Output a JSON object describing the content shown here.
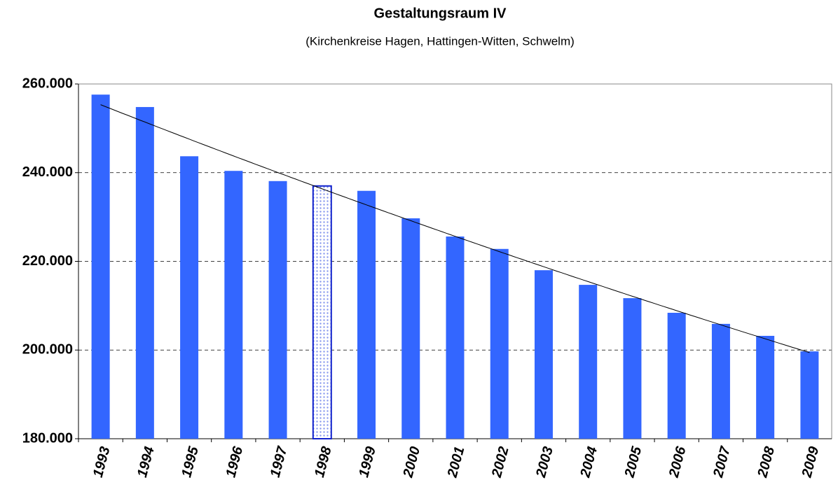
{
  "chart_data": {
    "type": "bar",
    "title": "Gestaltungsraum IV",
    "subtitle": "(Kirchenkreise Hagen, Hattingen-Witten, Schwelm)",
    "categories": [
      "1993",
      "1994",
      "1995",
      "1996",
      "1997",
      "1998",
      "1999",
      "2000",
      "2001",
      "2002",
      "2003",
      "2004",
      "2005",
      "2006",
      "2007",
      "2008",
      "2009"
    ],
    "values": [
      257600,
      254800,
      243700,
      240400,
      238100,
      237000,
      235900,
      229700,
      225600,
      222800,
      218000,
      214700,
      211700,
      208400,
      205900,
      203200,
      199700
    ],
    "color": "#3366ff",
    "highlight_index": 5,
    "trendline": true,
    "ylim": [
      180000,
      260000
    ],
    "yticks": [
      {
        "value": 180000,
        "label": "180.000"
      },
      {
        "value": 200000,
        "label": "200.000"
      },
      {
        "value": 220000,
        "label": "220.000"
      },
      {
        "value": 240000,
        "label": "240.000"
      },
      {
        "value": 260000,
        "label": "260.000"
      }
    ],
    "grid": true
  }
}
